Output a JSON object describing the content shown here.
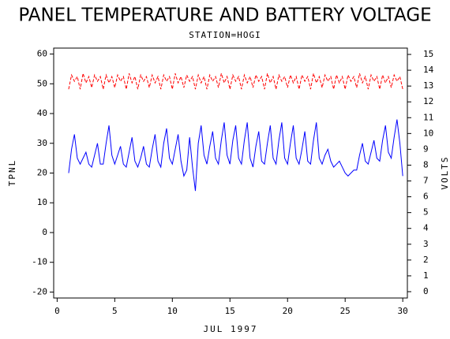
{
  "chart_data": {
    "type": "line",
    "title": "PANEL TEMPERATURE AND BATTERY VOLTAGE",
    "subtitle": "STATION=HOGI",
    "x_label": "JUL 1997",
    "y_label": "TPNL",
    "y2_label": "VOLTS",
    "x": [
      1,
      1.25,
      1.5,
      1.75,
      2,
      2.25,
      2.5,
      2.75,
      3,
      3.25,
      3.5,
      3.75,
      4,
      4.25,
      4.5,
      4.75,
      5,
      5.25,
      5.5,
      5.75,
      6,
      6.25,
      6.5,
      6.75,
      7,
      7.25,
      7.5,
      7.75,
      8,
      8.25,
      8.5,
      8.75,
      9,
      9.25,
      9.5,
      9.75,
      10,
      10.25,
      10.5,
      10.75,
      11,
      11.25,
      11.5,
      11.75,
      12,
      12.25,
      12.5,
      12.75,
      13,
      13.25,
      13.5,
      13.75,
      14,
      14.25,
      14.5,
      14.75,
      15,
      15.25,
      15.5,
      15.75,
      16,
      16.25,
      16.5,
      16.75,
      17,
      17.25,
      17.5,
      17.75,
      18,
      18.25,
      18.5,
      18.75,
      19,
      19.25,
      19.5,
      19.75,
      20,
      20.25,
      20.5,
      20.75,
      21,
      21.25,
      21.5,
      21.75,
      22,
      22.25,
      22.5,
      22.75,
      23,
      23.25,
      23.5,
      23.75,
      24,
      24.25,
      24.5,
      24.75,
      25,
      25.25,
      25.5,
      25.75,
      26,
      26.25,
      26.5,
      26.75,
      27,
      27.25,
      27.5,
      27.75,
      28,
      28.25,
      28.5,
      28.75,
      29,
      29.25,
      29.5,
      29.75,
      30
    ],
    "series": [
      {
        "name": "TPNL",
        "color": "#0000ff",
        "axis": "y",
        "dashed": false,
        "values": [
          20,
          28,
          33,
          25,
          23,
          25,
          27,
          23,
          22,
          26,
          30,
          23,
          23,
          30,
          36,
          26,
          23,
          26,
          29,
          23,
          22,
          27,
          32,
          24,
          22,
          25,
          29,
          23,
          22,
          28,
          33,
          24,
          22,
          30,
          35,
          25,
          23,
          28,
          33,
          24,
          19,
          21,
          32,
          22,
          14,
          30,
          36,
          26,
          23,
          29,
          34,
          25,
          23,
          31,
          37,
          26,
          23,
          31,
          36,
          25,
          23,
          31,
          37,
          25,
          22,
          29,
          34,
          24,
          23,
          30,
          36,
          25,
          23,
          31,
          37,
          25,
          23,
          30,
          36,
          25,
          23,
          28,
          34,
          24,
          23,
          31,
          37,
          25,
          23,
          26,
          28,
          24,
          22,
          23,
          24,
          22,
          20,
          19,
          20,
          21,
          21,
          26,
          30,
          24,
          23,
          27,
          31,
          25,
          24,
          31,
          36,
          27,
          25,
          32,
          38,
          30,
          19
        ]
      },
      {
        "name": "VOLTS",
        "color": "#ff0000",
        "axis": "y2",
        "dashed": true,
        "values": [
          12.8,
          13.7,
          13.3,
          13.6,
          12.8,
          13.8,
          13.2,
          13.6,
          12.9,
          13.7,
          13.3,
          13.6,
          12.8,
          13.7,
          13.2,
          13.6,
          12.9,
          13.7,
          13.3,
          13.6,
          12.8,
          13.8,
          13.2,
          13.6,
          12.8,
          13.7,
          13.3,
          13.6,
          12.9,
          13.7,
          13.2,
          13.6,
          12.8,
          13.7,
          13.3,
          13.6,
          12.8,
          13.8,
          13.2,
          13.6,
          12.9,
          13.7,
          13.3,
          13.6,
          12.8,
          13.7,
          13.2,
          13.6,
          12.8,
          13.7,
          13.3,
          13.6,
          12.9,
          13.8,
          13.2,
          13.6,
          12.8,
          13.7,
          13.3,
          13.6,
          12.8,
          13.7,
          13.2,
          13.6,
          12.9,
          13.7,
          13.3,
          13.6,
          12.8,
          13.8,
          13.2,
          13.6,
          12.8,
          13.7,
          13.3,
          13.6,
          12.9,
          13.7,
          13.2,
          13.6,
          12.8,
          13.7,
          13.3,
          13.6,
          12.8,
          13.8,
          13.2,
          13.6,
          12.9,
          13.7,
          13.3,
          13.6,
          12.8,
          13.7,
          13.2,
          13.6,
          12.8,
          13.7,
          13.3,
          13.6,
          12.9,
          13.8,
          13.2,
          13.6,
          12.8,
          13.7,
          13.3,
          13.6,
          12.8,
          13.7,
          13.2,
          13.6,
          12.9,
          13.7,
          13.3,
          13.6,
          12.8
        ]
      }
    ],
    "xlim": [
      -0.3,
      30.4
    ],
    "xticks": [
      0,
      5,
      10,
      15,
      20,
      25,
      30
    ],
    "ylim": [
      -22,
      62
    ],
    "yticks": [
      -20,
      -10,
      0,
      10,
      20,
      30,
      40,
      50,
      60
    ],
    "y2lim": [
      -0.4,
      15.4
    ],
    "y2ticks": [
      0,
      1,
      2,
      3,
      4,
      5,
      6,
      7,
      8,
      9,
      10,
      11,
      12,
      13,
      14,
      15
    ],
    "grid": false
  }
}
